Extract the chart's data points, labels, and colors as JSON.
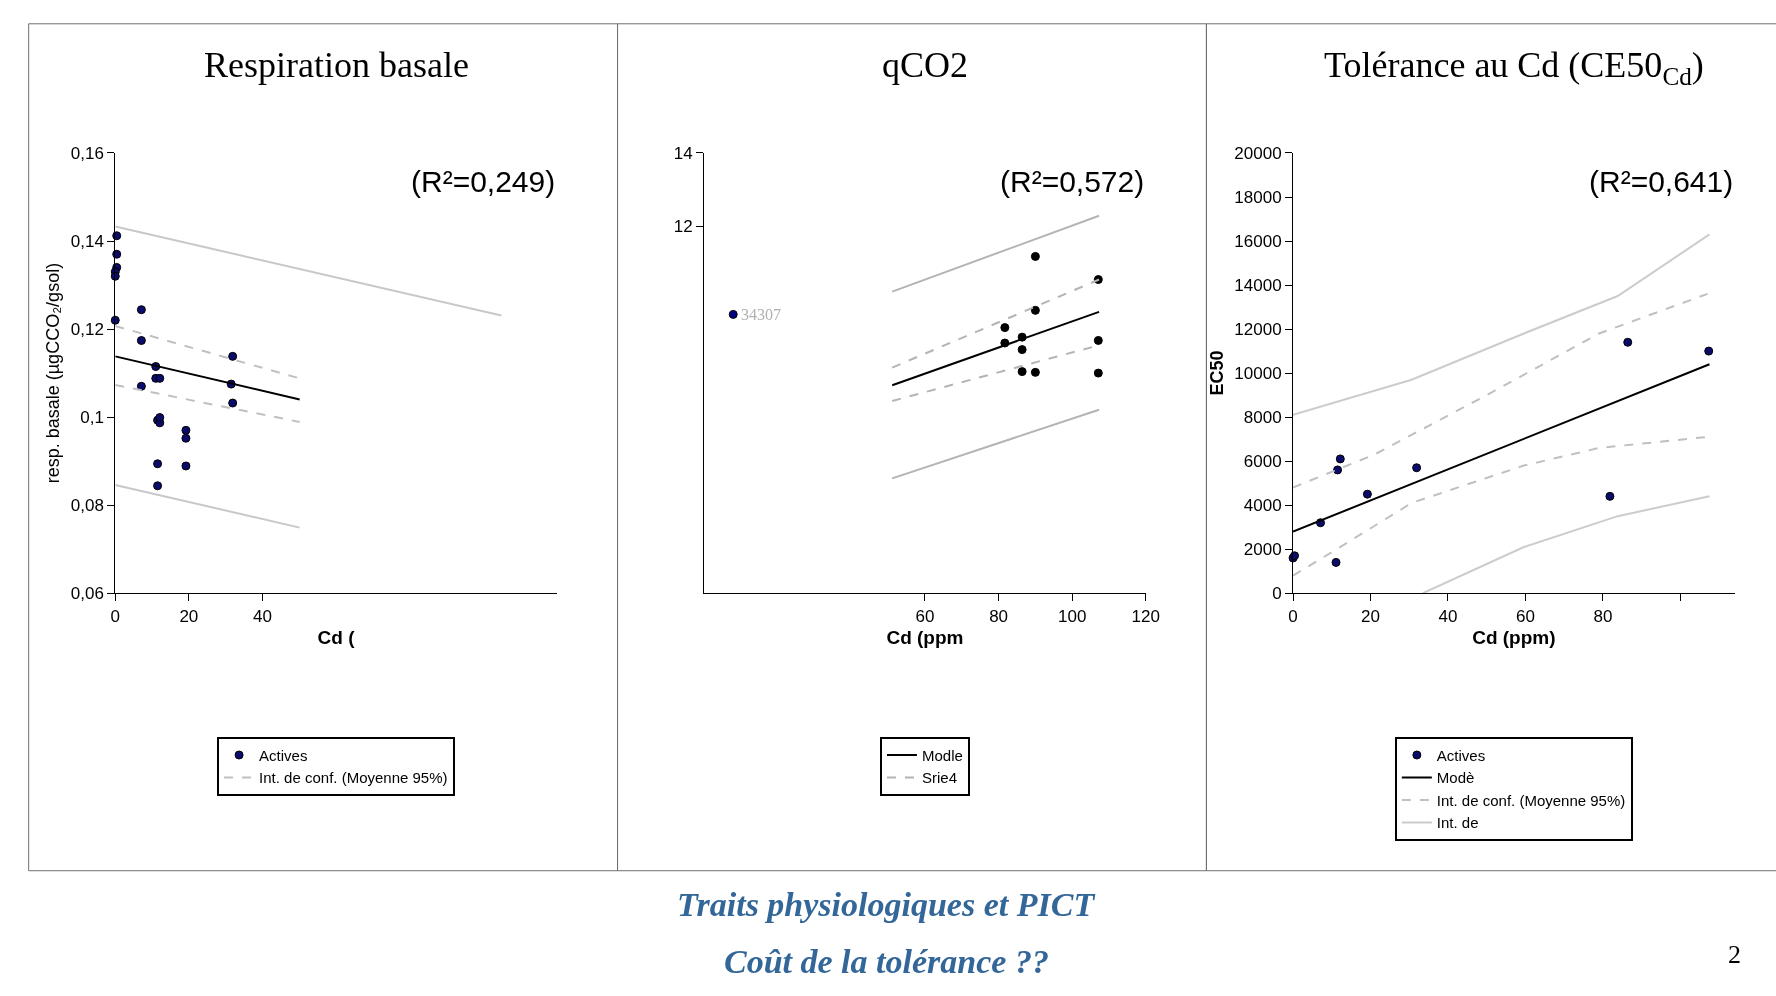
{
  "chart_data": [
    {
      "type": "scatter",
      "title": "Respiration basale",
      "xlabel": "Cd (",
      "ylabel": "resp. basale (µgCCO₂/gsol)",
      "xlim": [
        0,
        120
      ],
      "xticks": [
        0,
        20,
        40
      ],
      "ylim": [
        0.06,
        0.16
      ],
      "yticks": [
        {
          "value": 0.06,
          "label": "0,06"
        },
        {
          "value": 0.08,
          "label": "0,08"
        },
        {
          "value": 0.1,
          "label": "0,1"
        },
        {
          "value": 0.12,
          "label": "0,12"
        },
        {
          "value": 0.14,
          "label": "0,14"
        },
        {
          "value": 0.16,
          "label": "0,16"
        }
      ],
      "grid": false,
      "legend": "bottom",
      "annotations": [
        "(R²=0,249)"
      ],
      "series": [
        {
          "name": "Actives",
          "marker": "circle",
          "color": "#0b0b6b",
          "x": [
            0.4,
            0.4,
            0.4,
            0,
            0,
            0,
            7.1,
            7.1,
            7.1,
            11,
            11,
            12.1,
            11.5,
            12.1,
            12.1,
            11.5,
            11.5,
            19.2,
            19.2,
            19.2,
            31.9,
            31.5,
            31.9
          ],
          "values": [
            0.1412,
            0.137,
            0.134,
            0.133,
            0.132,
            0.122,
            0.1244,
            0.1174,
            0.107,
            0.1115,
            0.1088,
            0.1088,
            0.0993,
            0.0987,
            0.0999,
            0.0894,
            0.0844,
            0.097,
            0.0952,
            0.0889,
            0.1138,
            0.1075,
            0.1032
          ]
        },
        {
          "type": "line",
          "color": "#000000",
          "line_style": "solid",
          "x": [
            0,
            50.1
          ],
          "values": [
            0.1138,
            0.104
          ]
        },
        {
          "name": "Int. de conf. (Moyenne 95%)",
          "type": "line",
          "color": "#c0c0c0",
          "line_style": "dashed",
          "x": [
            0,
            50.1
          ],
          "values": [
            0.1207,
            0.1088
          ]
        },
        {
          "type": "line",
          "color": "#c0c0c0",
          "line_style": "dashed",
          "x": [
            0,
            50.1
          ],
          "values": [
            0.1073,
            0.0989
          ]
        },
        {
          "type": "line",
          "color": "#c8c8c8",
          "line_style": "solid",
          "x": [
            0,
            104.9
          ],
          "values": [
            0.1433,
            0.1231
          ]
        },
        {
          "type": "line",
          "color": "#c8c8c8",
          "line_style": "solid",
          "x": [
            0,
            50.1
          ],
          "values": [
            0.0846,
            0.0749
          ]
        }
      ]
    },
    {
      "type": "scatter",
      "title": "qCO2",
      "xlabel": "Cd (ppm",
      "xlim": [
        0,
        120
      ],
      "xticks": [
        60,
        80,
        100,
        120
      ],
      "ylim": [
        2,
        14
      ],
      "yticks": [
        12,
        14
      ],
      "grid": false,
      "legend": "bottom",
      "annotations": [
        "(R²=0,572)",
        {
          "text": "34307",
          "x": 7.9,
          "y": 9.6
        }
      ],
      "series": [
        {
          "marker": "circle",
          "color": "#000000",
          "x": [
            81.7,
            81.7,
            86.4,
            86.4,
            86.4,
            90,
            90,
            90,
            107.1,
            107.1,
            107.1
          ],
          "values": [
            9.24,
            8.82,
            8.98,
            8.64,
            8.04,
            11.18,
            9.71,
            8.02,
            10.55,
            8.89,
            8.0
          ]
        },
        {
          "marker": "circle",
          "color": "#00007f",
          "x": [
            7.9
          ],
          "values": [
            9.6
          ]
        },
        {
          "name": "Modle",
          "type": "line",
          "color": "#000000",
          "line_style": "solid",
          "x": [
            51.1,
            107.3
          ],
          "values": [
            7.67,
            9.67
          ]
        },
        {
          "name": "Srie4",
          "type": "line",
          "color": "#b4b4b4",
          "line_style": "dashed",
          "x": [
            51.1,
            107.3
          ],
          "values": [
            8.15,
            10.55
          ]
        },
        {
          "type": "line",
          "color": "#b4b4b4",
          "line_style": "dashed",
          "x": [
            51.1,
            107.3
          ],
          "values": [
            7.24,
            8.76
          ]
        },
        {
          "type": "line",
          "color": "#b4b4b4",
          "line_style": "solid",
          "x": [
            51.1,
            107.3
          ],
          "values": [
            10.22,
            12.29
          ]
        },
        {
          "type": "line",
          "color": "#b4b4b4",
          "line_style": "solid",
          "x": [
            51.1,
            107.3
          ],
          "values": [
            5.13,
            7.0
          ]
        }
      ]
    },
    {
      "type": "scatter",
      "title": "Tolérance au Cd (CE50$_{Cd}$)",
      "xlabel": "Cd (ppm)",
      "ylabel": "EC50",
      "xlim": [
        0,
        114
      ],
      "xticks": [
        0,
        20,
        40,
        60,
        80,
        {
          "value": 100,
          "label": null
        }
      ],
      "ylim": [
        0,
        20000
      ],
      "yticks": [
        0,
        2000,
        4000,
        6000,
        8000,
        10000,
        12000,
        14000,
        16000,
        18000,
        20000
      ],
      "grid": false,
      "legend": "bottom",
      "annotations": [
        "(R²=0,641)",
        "Traits physiologiques et PICT",
        "Coût de la tolérance ??",
        "2"
      ],
      "series": [
        {
          "name": "Actives",
          "marker": "circle",
          "color": "#0b0b6b",
          "x": [
            0,
            0.4,
            7.1,
            11.1,
            11.5,
            12.2,
            19.2,
            31.9,
            81.8,
            86.4,
            107.3
          ],
          "values": [
            1600,
            1700,
            3200,
            1400,
            5600,
            6100,
            4500,
            5700,
            4400,
            11400,
            11000
          ]
        },
        {
          "name": "Modè",
          "type": "line",
          "color": "#000000",
          "line_style": "solid",
          "x": [
            0,
            107.5
          ],
          "values": [
            2800,
            10400
          ]
        },
        {
          "name": "Int. de conf. (Moyenne 95%)",
          "type": "line",
          "color": "#c0c0c0",
          "line_style": "dashed",
          "x": [
            0,
            21,
            50,
            79,
            107
          ],
          "values": [
            4800,
            6300,
            9000,
            11800,
            13600
          ]
        },
        {
          "type": "line",
          "color": "#c0c0c0",
          "line_style": "dashed",
          "x": [
            0,
            11.3,
            30.6,
            59.6,
            79,
            107
          ],
          "values": [
            800,
            2000,
            4100,
            5800,
            6600,
            7100
          ]
        },
        {
          "name": "Int. de",
          "type": "line",
          "color": "#cccccc",
          "line_style": "solid",
          "x": [
            0,
            30.6,
            59.6,
            83.8,
            107.5
          ],
          "values": [
            8100,
            9700,
            11800,
            13500,
            16300
          ]
        },
        {
          "type": "line",
          "color": "#cccccc",
          "line_style": "solid",
          "x": [
            33.5,
            59.6,
            83.8,
            107.5
          ],
          "values": [
            0,
            2100,
            3500,
            4400
          ]
        }
      ]
    }
  ]
}
